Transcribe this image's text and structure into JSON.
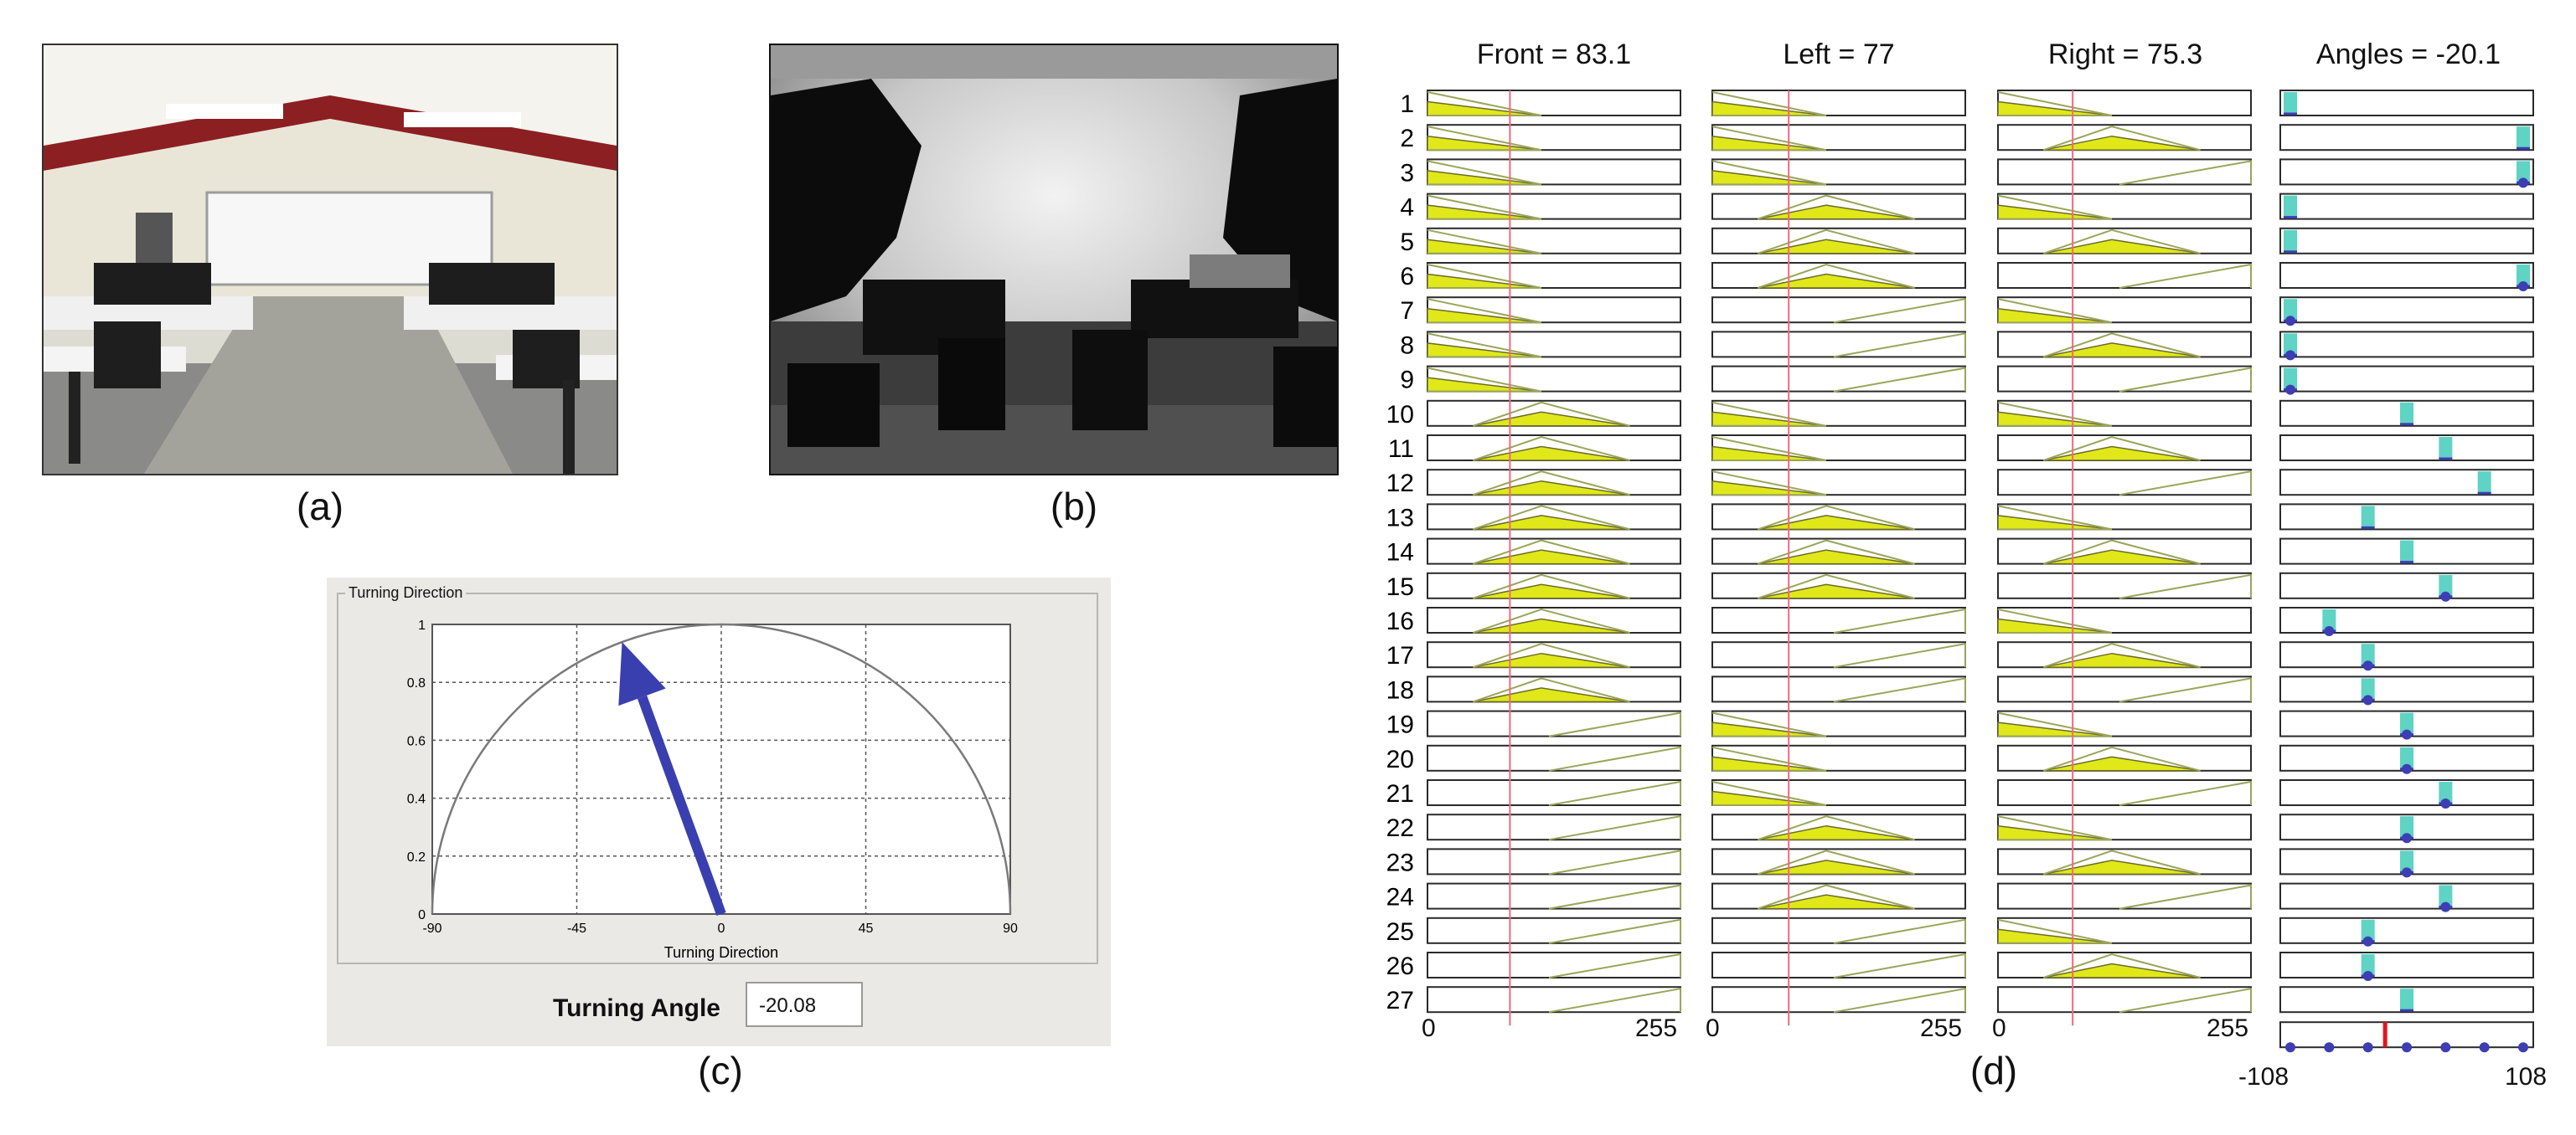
{
  "panel_captions": {
    "a": "(a)",
    "b": "(b)",
    "c": "(c)",
    "d": "(d)"
  },
  "turning_panel": {
    "legend": "Turning Direction",
    "xlabel": "Turning Direction",
    "x_ticks": [
      "-90",
      "-45",
      "0",
      "45",
      "90"
    ],
    "y_ticks": [
      "0",
      "0.2",
      "0.4",
      "0.6",
      "0.8",
      "1"
    ],
    "angle_label": "Turning Angle",
    "angle_value": "-20.08",
    "arrow_angle_deg": -20.08,
    "arrow_color": "#3a3fb0"
  },
  "rule_viewer": {
    "headers": {
      "front": "Front = 83.1",
      "left": "Left = 77",
      "right": "Right = 75.3",
      "angles": "Angles = -20.1"
    },
    "input_axis": {
      "min": "0",
      "max": "255"
    },
    "output_axis": {
      "min": "-108",
      "max": "108"
    },
    "rows": [
      "1",
      "2",
      "3",
      "4",
      "5",
      "6",
      "7",
      "8",
      "9",
      "10",
      "11",
      "12",
      "13",
      "14",
      "15",
      "16",
      "17",
      "18",
      "19",
      "20",
      "21",
      "22",
      "23",
      "24",
      "25",
      "26",
      "27"
    ],
    "front_mf": [
      "L",
      "L",
      "L",
      "L",
      "L",
      "L",
      "L",
      "L",
      "L",
      "M",
      "M",
      "M",
      "M",
      "M",
      "M",
      "M",
      "M",
      "M",
      "H",
      "H",
      "H",
      "H",
      "H",
      "H",
      "H",
      "H",
      "H"
    ],
    "left_mf": [
      "L",
      "L",
      "L",
      "M",
      "M",
      "M",
      "H",
      "H",
      "H",
      "L",
      "L",
      "L",
      "M",
      "M",
      "M",
      "H",
      "H",
      "H",
      "L",
      "L",
      "L",
      "M",
      "M",
      "M",
      "H",
      "H",
      "H"
    ],
    "right_mf": [
      "L",
      "M",
      "H",
      "L",
      "M",
      "H",
      "L",
      "M",
      "H",
      "L",
      "M",
      "H",
      "L",
      "M",
      "H",
      "L",
      "M",
      "H",
      "L",
      "M",
      "H",
      "L",
      "M",
      "H",
      "L",
      "M",
      "H"
    ],
    "out_positions": [
      -108,
      108,
      108,
      -108,
      -108,
      108,
      -108,
      -108,
      -108,
      0,
      36,
      72,
      -36,
      0,
      36,
      -72,
      -36,
      -36,
      0,
      0,
      36,
      0,
      0,
      36,
      -36,
      -36,
      0
    ],
    "out_dots": [
      0,
      0,
      1,
      0,
      0,
      1,
      1,
      1,
      1,
      0,
      0,
      0,
      0,
      0,
      1,
      1,
      1,
      1,
      1,
      1,
      1,
      1,
      1,
      1,
      1,
      1,
      0
    ],
    "out_markers": [
      -108,
      -72,
      -36,
      0,
      36,
      72,
      108
    ],
    "result_angle": -20.1,
    "input_values": {
      "front": 83.1,
      "left": 77,
      "right": 75.3
    },
    "colors": {
      "mf_fill": "#e0e81a",
      "mf_line": "#9aa55a",
      "input_line": "#f06a7a",
      "out_bar": "#5fd3c4",
      "out_dot": "#3d3db4",
      "result_line": "#e4141e"
    }
  }
}
